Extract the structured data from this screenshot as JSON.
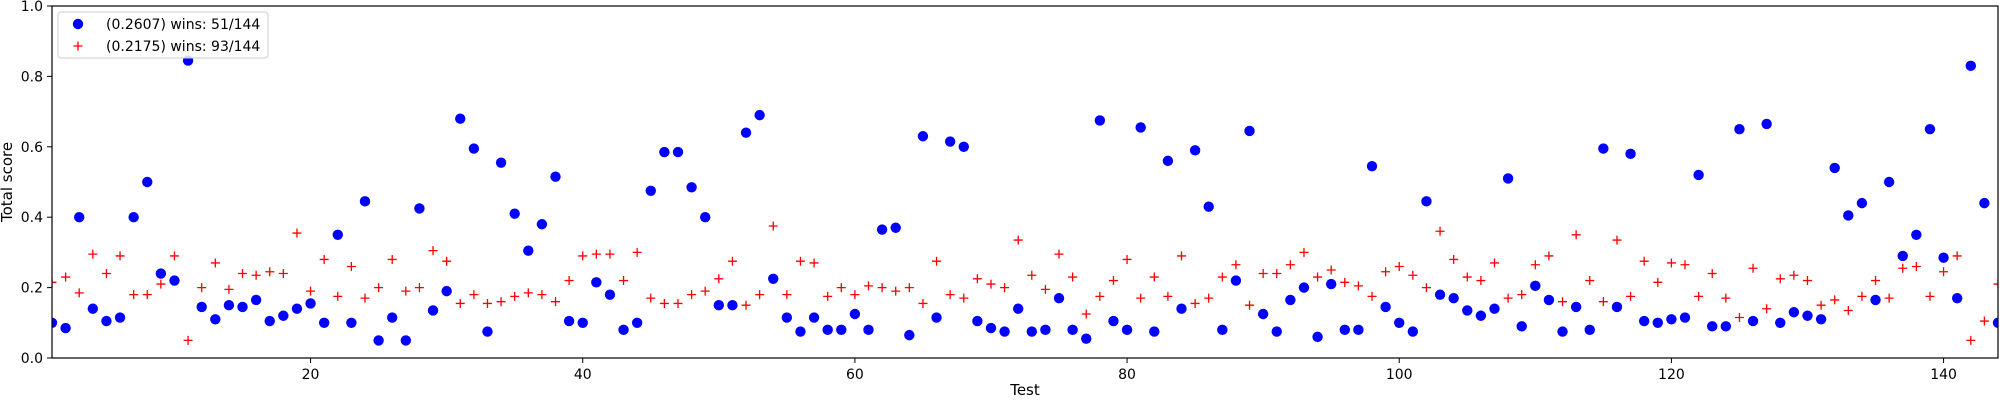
{
  "chart_data": {
    "type": "scatter",
    "title": "",
    "xlabel": "Test",
    "ylabel": "Total score",
    "xlim": [
      1,
      144
    ],
    "ylim": [
      0.0,
      1.0
    ],
    "xticks": [
      20,
      40,
      60,
      80,
      100,
      120,
      140
    ],
    "yticks": [
      0.0,
      0.2,
      0.4,
      0.6,
      0.8,
      1.0
    ],
    "grid": false,
    "legend_placement": "top-left",
    "x": [
      1,
      2,
      3,
      4,
      5,
      6,
      7,
      8,
      9,
      10,
      11,
      12,
      13,
      14,
      15,
      16,
      17,
      18,
      19,
      20,
      21,
      22,
      23,
      24,
      25,
      26,
      27,
      28,
      29,
      30,
      31,
      32,
      33,
      34,
      35,
      36,
      37,
      38,
      39,
      40,
      41,
      42,
      43,
      44,
      45,
      46,
      47,
      48,
      49,
      50,
      51,
      52,
      53,
      54,
      55,
      56,
      57,
      58,
      59,
      60,
      61,
      62,
      63,
      64,
      65,
      66,
      67,
      68,
      69,
      70,
      71,
      72,
      73,
      74,
      75,
      76,
      77,
      78,
      79,
      80,
      81,
      82,
      83,
      84,
      85,
      86,
      87,
      88,
      89,
      90,
      91,
      92,
      93,
      94,
      95,
      96,
      97,
      98,
      99,
      100,
      101,
      102,
      103,
      104,
      105,
      106,
      107,
      108,
      109,
      110,
      111,
      112,
      113,
      114,
      115,
      116,
      117,
      118,
      119,
      120,
      121,
      122,
      123,
      124,
      125,
      126,
      127,
      128,
      129,
      130,
      131,
      132,
      133,
      134,
      135,
      136,
      137,
      138,
      139,
      140,
      141,
      142,
      143,
      144
    ],
    "series": [
      {
        "name": "(0.2607) wins: 51/144",
        "marker": "circle",
        "color": "#0000ff",
        "values": [
          0.1,
          0.085,
          0.4,
          0.14,
          0.105,
          0.115,
          0.4,
          0.5,
          0.24,
          0.22,
          0.845,
          0.145,
          0.11,
          0.15,
          0.145,
          0.165,
          0.105,
          0.12,
          0.14,
          0.155,
          0.1,
          0.35,
          0.1,
          0.445,
          0.05,
          0.115,
          0.05,
          0.425,
          0.135,
          0.19,
          0.68,
          0.595,
          0.075,
          0.555,
          0.41,
          0.305,
          0.38,
          0.515,
          0.105,
          0.1,
          0.215,
          0.18,
          0.08,
          0.1,
          0.475,
          0.585,
          0.585,
          0.485,
          0.4,
          0.15,
          0.15,
          0.64,
          0.69,
          0.225,
          0.115,
          0.075,
          0.115,
          0.08,
          0.08,
          0.125,
          0.08,
          0.365,
          0.37,
          0.065,
          0.63,
          0.115,
          0.615,
          0.6,
          0.105,
          0.085,
          0.075,
          0.14,
          0.075,
          0.08,
          0.17,
          0.08,
          0.055,
          0.675,
          0.105,
          0.08,
          0.655,
          0.075,
          0.56,
          0.14,
          0.59,
          0.43,
          0.08,
          0.22,
          0.645,
          0.125,
          0.075,
          0.165,
          0.2,
          0.06,
          0.21,
          0.08,
          0.08,
          0.545,
          0.145,
          0.1,
          0.075,
          0.445,
          0.18,
          0.17,
          0.135,
          0.12,
          0.14,
          0.51,
          0.09,
          0.205,
          0.165,
          0.075,
          0.145,
          0.08,
          0.595,
          0.145,
          0.58,
          0.105,
          0.1,
          0.11,
          0.115,
          0.52,
          0.09,
          0.09,
          0.65,
          0.105,
          0.665,
          0.1,
          0.13,
          0.12,
          0.11,
          0.54,
          0.405,
          0.44,
          0.165,
          0.5,
          0.29,
          0.35,
          0.65,
          0.285,
          0.17,
          0.83,
          0.44,
          0.1
        ]
      },
      {
        "name": "(0.2175) wins: 93/144",
        "marker": "plus",
        "color": "#ff0000",
        "values": [
          0.215,
          0.23,
          0.185,
          0.295,
          0.24,
          0.29,
          0.18,
          0.18,
          0.21,
          0.29,
          0.05,
          0.2,
          0.27,
          0.195,
          0.24,
          0.235,
          0.245,
          0.24,
          0.355,
          0.19,
          0.28,
          0.175,
          0.26,
          0.17,
          0.2,
          0.28,
          0.19,
          0.2,
          0.305,
          0.275,
          0.155,
          0.18,
          0.155,
          0.16,
          0.175,
          0.185,
          0.18,
          0.16,
          0.22,
          0.29,
          0.295,
          0.295,
          0.22,
          0.3,
          0.17,
          0.155,
          0.155,
          0.18,
          0.19,
          0.225,
          0.275,
          0.15,
          0.18,
          0.375,
          0.18,
          0.275,
          0.27,
          0.175,
          0.2,
          0.18,
          0.205,
          0.2,
          0.19,
          0.2,
          0.155,
          0.275,
          0.18,
          0.17,
          0.225,
          0.21,
          0.2,
          0.335,
          0.235,
          0.195,
          0.295,
          0.23,
          0.125,
          0.175,
          0.22,
          0.28,
          0.17,
          0.23,
          0.175,
          0.29,
          0.155,
          0.17,
          0.23,
          0.265,
          0.15,
          0.24,
          0.24,
          0.265,
          0.3,
          0.23,
          0.25,
          0.215,
          0.205,
          0.175,
          0.245,
          0.26,
          0.235,
          0.2,
          0.36,
          0.28,
          0.23,
          0.22,
          0.27,
          0.17,
          0.18,
          0.265,
          0.29,
          0.16,
          0.35,
          0.22,
          0.16,
          0.335,
          0.175,
          0.275,
          0.215,
          0.27,
          0.265,
          0.175,
          0.24,
          0.17,
          0.115,
          0.255,
          0.14,
          0.225,
          0.235,
          0.22,
          0.15,
          0.165,
          0.135,
          0.175,
          0.22,
          0.17,
          0.255,
          0.26,
          0.175,
          0.245,
          0.29,
          0.05,
          0.105,
          0.21
        ]
      }
    ]
  }
}
